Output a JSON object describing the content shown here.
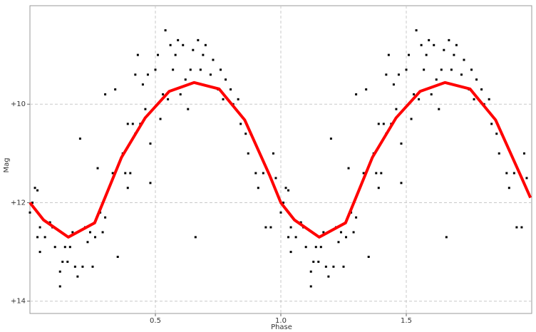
{
  "chart_data": {
    "type": "scatter",
    "x_label": "Phase",
    "y_label": "Mag",
    "xlim": [
      0,
      2
    ],
    "ylim": [
      14.25,
      8
    ],
    "xticks": [
      0.5,
      {
        "value": 1,
        "label": "1.0"
      },
      1.5
    ],
    "yticks": [
      {
        "value": 10,
        "label": "+10"
      },
      {
        "value": 12,
        "label": "+12"
      },
      {
        "value": 14,
        "label": "+14"
      }
    ],
    "grid": true,
    "series": [
      {
        "mode": "markers",
        "color": "#000000",
        "x": [
          0.0,
          0.01,
          0.02,
          0.03,
          0.03,
          0.04,
          0.04,
          0.06,
          0.08,
          0.09,
          0.1,
          0.12,
          0.12,
          0.13,
          0.14,
          0.15,
          0.16,
          0.17,
          0.18,
          0.19,
          0.2,
          0.21,
          0.22,
          0.23,
          0.24,
          0.25,
          0.26,
          0.27,
          0.28,
          0.29,
          0.3,
          0.3,
          0.33,
          0.34,
          0.35,
          0.37,
          0.38,
          0.39,
          0.39,
          0.4,
          0.41,
          0.42,
          0.42,
          0.43,
          0.44,
          0.45,
          0.46,
          0.47,
          0.48,
          0.48,
          0.5,
          0.51,
          0.52,
          0.53,
          0.54,
          0.55,
          0.56,
          0.57,
          0.58,
          0.59,
          0.6,
          0.61,
          0.62,
          0.63,
          0.64,
          0.65,
          0.66,
          0.67,
          0.68,
          0.69,
          0.7,
          0.72,
          0.73,
          0.75,
          0.76,
          0.77,
          0.78,
          0.8,
          0.81,
          0.83,
          0.84,
          0.86,
          0.87,
          0.88,
          0.9,
          0.91,
          0.93,
          0.94,
          0.96,
          0.97,
          0.98,
          1.0,
          1.01,
          1.02,
          1.03,
          1.03,
          1.04,
          1.04,
          1.06,
          1.08,
          1.09,
          1.1,
          1.12,
          1.12,
          1.13,
          1.14,
          1.15,
          1.16,
          1.17,
          1.18,
          1.19,
          1.2,
          1.21,
          1.22,
          1.23,
          1.24,
          1.25,
          1.26,
          1.27,
          1.28,
          1.29,
          1.3,
          1.3,
          1.33,
          1.34,
          1.35,
          1.37,
          1.38,
          1.39,
          1.39,
          1.4,
          1.41,
          1.42,
          1.42,
          1.43,
          1.44,
          1.45,
          1.46,
          1.47,
          1.48,
          1.48,
          1.5,
          1.51,
          1.52,
          1.53,
          1.54,
          1.55,
          1.56,
          1.57,
          1.58,
          1.59,
          1.6,
          1.61,
          1.62,
          1.63,
          1.64,
          1.65,
          1.66,
          1.67,
          1.68,
          1.69,
          1.7,
          1.72,
          1.73,
          1.75,
          1.76,
          1.77,
          1.78,
          1.8,
          1.81,
          1.83,
          1.84,
          1.86,
          1.87,
          1.88,
          1.9,
          1.91,
          1.93,
          1.94,
          1.96,
          1.97,
          1.98
        ],
        "values": [
          12.2,
          12.0,
          11.7,
          11.75,
          12.7,
          12.5,
          13.0,
          12.7,
          12.4,
          12.5,
          12.9,
          13.4,
          13.7,
          13.2,
          12.9,
          13.2,
          12.9,
          12.6,
          13.3,
          13.5,
          10.7,
          13.3,
          12.5,
          12.8,
          12.6,
          13.3,
          12.7,
          11.3,
          12.2,
          12.6,
          12.3,
          9.8,
          11.4,
          9.7,
          13.1,
          11.0,
          11.4,
          10.4,
          11.7,
          11.4,
          10.4,
          9.4,
          10.6,
          9.0,
          10.4,
          9.6,
          10.1,
          9.4,
          10.8,
          11.6,
          9.3,
          9.0,
          10.3,
          9.8,
          8.5,
          9.9,
          8.8,
          9.3,
          9.0,
          8.7,
          9.8,
          8.8,
          9.5,
          10.1,
          9.3,
          8.9,
          12.7,
          8.7,
          9.3,
          9.0,
          8.8,
          9.4,
          9.1,
          9.7,
          9.3,
          9.9,
          9.5,
          9.7,
          10.0,
          9.9,
          10.4,
          10.6,
          11.0,
          10.6,
          11.4,
          11.7,
          11.4,
          12.5,
          12.5,
          11.0,
          11.5,
          12.2,
          12.0,
          11.7,
          11.75,
          12.7,
          12.5,
          13.0,
          12.7,
          12.4,
          12.5,
          12.9,
          13.4,
          13.7,
          13.2,
          12.9,
          13.2,
          12.9,
          12.6,
          13.3,
          13.5,
          10.7,
          13.3,
          12.5,
          12.8,
          12.6,
          13.3,
          12.7,
          11.3,
          12.2,
          12.6,
          12.3,
          9.8,
          11.4,
          9.7,
          13.1,
          11.0,
          11.4,
          10.4,
          11.7,
          11.4,
          10.4,
          9.4,
          10.6,
          9.0,
          10.4,
          9.6,
          10.1,
          9.4,
          10.8,
          11.6,
          9.3,
          9.0,
          10.3,
          9.8,
          8.5,
          9.9,
          8.8,
          9.3,
          9.0,
          8.7,
          9.8,
          8.8,
          9.5,
          10.1,
          9.3,
          8.9,
          12.7,
          8.7,
          9.3,
          9.0,
          8.8,
          9.4,
          9.1,
          9.7,
          9.3,
          9.9,
          9.5,
          9.7,
          10.0,
          9.9,
          10.4,
          10.6,
          11.0,
          10.6,
          11.4,
          11.7,
          11.4,
          12.5,
          12.5,
          11.0,
          11.5
        ]
      },
      {
        "mode": "lines",
        "color": "#ff0000",
        "x": [
          0,
          0.054,
          0.153,
          0.258,
          0.365,
          0.459,
          0.555,
          0.654,
          0.754,
          0.856,
          0.955,
          1.0,
          1.054,
          1.153,
          1.258,
          1.365,
          1.459,
          1.555,
          1.654,
          1.754,
          1.856,
          1.955,
          1.995
        ],
        "values": [
          12.0,
          12.35,
          12.7,
          12.41,
          11.08,
          10.28,
          9.74,
          9.56,
          9.69,
          10.32,
          11.44,
          12.0,
          12.35,
          12.7,
          12.41,
          11.08,
          10.28,
          9.74,
          9.56,
          9.69,
          10.32,
          11.44,
          11.9
        ]
      }
    ]
  }
}
